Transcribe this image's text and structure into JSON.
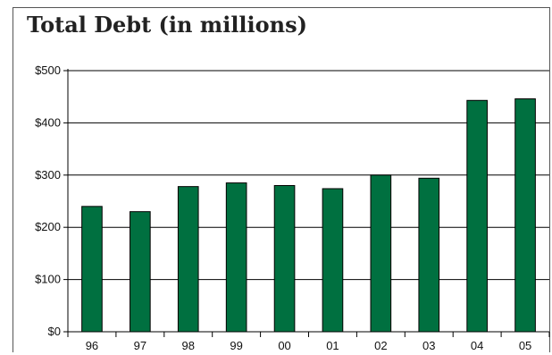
{
  "chart_data": {
    "type": "bar",
    "title": "Total Debt (in millions)",
    "xlabel": "",
    "ylabel": "",
    "categories": [
      "96",
      "97",
      "98",
      "99",
      "00",
      "01",
      "02",
      "03",
      "04",
      "05"
    ],
    "values": [
      240,
      230,
      278,
      285,
      280,
      274,
      300,
      294,
      443,
      446
    ],
    "ylim": [
      0,
      500
    ],
    "yticks": [
      0,
      100,
      200,
      300,
      400,
      500
    ],
    "ytick_labels": [
      "$0",
      "$100",
      "$200",
      "$300",
      "$400",
      "$500"
    ],
    "bar_color": "#007040",
    "grid": "horizontal",
    "legend": "none"
  }
}
